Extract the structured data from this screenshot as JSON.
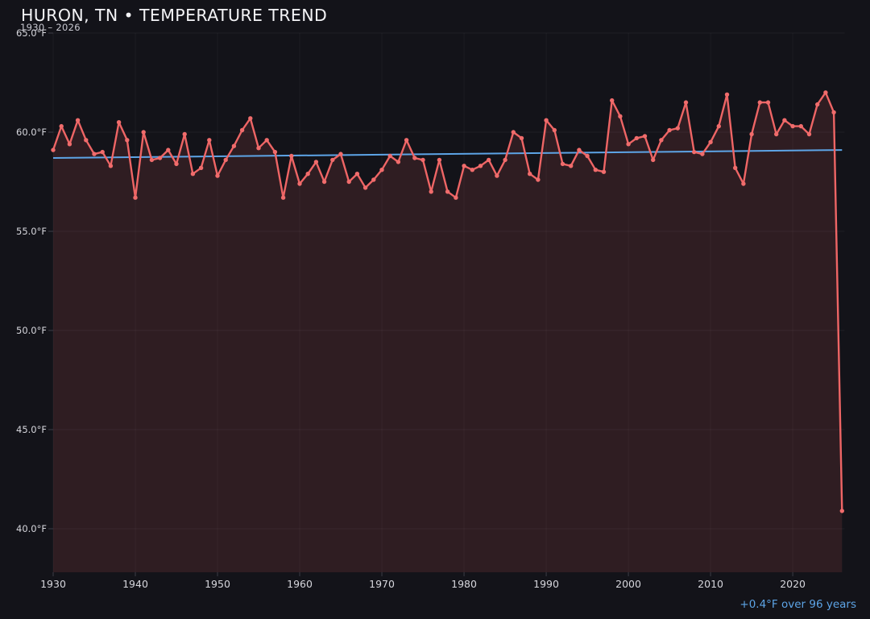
{
  "page": {
    "background": "#131319"
  },
  "header": {
    "title": "HURON, TN • TEMPERATURE TREND",
    "subtitle": "1930 – 2026"
  },
  "colors": {
    "background": "#131319",
    "line": "#ee6565",
    "marker": "#f06c6c",
    "area_fill": "rgba(238,101,101,0.13)",
    "trendline": "#5da4e6",
    "annotation_text": "#5da4e6",
    "tick_label": "#d6d6dc",
    "title_text": "#f3f3f6",
    "subtitle_text": "#c9c9d1",
    "gridline": "rgba(255,255,255,0.055)",
    "gridline_vertical": "rgba(255,255,255,0.04)",
    "tick_mark": "#3c3c46"
  },
  "chart_data": {
    "type": "line",
    "title": "HURON, TN • TEMPERATURE TREND",
    "subtitle": "1930 – 2026",
    "station": "HURON, TN",
    "annotation": "+0.4°F over 96 years",
    "xlabel": "",
    "ylabel": "",
    "y_unit": "°F",
    "x_unit": "year",
    "xlim": [
      1930,
      2026
    ],
    "ylim": [
      37.6,
      65.0
    ],
    "grid": true,
    "legend_position": "none",
    "x_ticks": [
      1930,
      1940,
      1950,
      1960,
      1970,
      1980,
      1990,
      2000,
      2010,
      2020
    ],
    "y_ticks": [
      {
        "value": 65,
        "label": "65.0°F"
      },
      {
        "value": 60,
        "label": "60.0°F"
      },
      {
        "value": 55,
        "label": "55.0°F"
      },
      {
        "value": 50,
        "label": "50.0°F"
      },
      {
        "value": 45,
        "label": "45.0°F"
      },
      {
        "value": 40,
        "label": "40.0°F"
      }
    ],
    "x": [
      1930,
      1931,
      1932,
      1933,
      1934,
      1935,
      1936,
      1937,
      1938,
      1939,
      1940,
      1941,
      1942,
      1943,
      1944,
      1945,
      1946,
      1947,
      1948,
      1949,
      1950,
      1951,
      1952,
      1953,
      1954,
      1955,
      1956,
      1957,
      1958,
      1959,
      1960,
      1961,
      1962,
      1963,
      1964,
      1965,
      1966,
      1967,
      1968,
      1969,
      1970,
      1971,
      1972,
      1973,
      1974,
      1975,
      1976,
      1977,
      1978,
      1979,
      1980,
      1981,
      1982,
      1983,
      1984,
      1985,
      1986,
      1987,
      1988,
      1989,
      1990,
      1991,
      1992,
      1993,
      1994,
      1995,
      1996,
      1997,
      1998,
      1999,
      2000,
      2001,
      2002,
      2003,
      2004,
      2005,
      2006,
      2007,
      2008,
      2009,
      2010,
      2011,
      2012,
      2013,
      2014,
      2015,
      2016,
      2017,
      2018,
      2019,
      2020,
      2021,
      2022,
      2023,
      2024,
      2025,
      2026
    ],
    "series": [
      {
        "name": "annual-mean-temperature-f",
        "color": "#ee6565",
        "values": [
          59.1,
          60.3,
          59.4,
          60.6,
          59.6,
          58.9,
          59.0,
          58.3,
          60.5,
          59.6,
          56.7,
          60.0,
          58.6,
          58.7,
          59.1,
          58.4,
          59.9,
          57.9,
          58.2,
          59.6,
          57.8,
          58.6,
          59.3,
          60.1,
          60.7,
          59.2,
          59.6,
          59.0,
          56.7,
          58.8,
          57.4,
          57.9,
          58.5,
          57.5,
          58.6,
          58.9,
          57.5,
          57.9,
          57.2,
          57.6,
          58.1,
          58.8,
          58.5,
          59.6,
          58.7,
          58.6,
          57.0,
          58.6,
          57.0,
          56.7,
          58.3,
          58.1,
          58.3,
          58.6,
          57.8,
          58.6,
          60.0,
          59.7,
          57.9,
          57.6,
          60.6,
          60.1,
          58.4,
          58.3,
          59.1,
          58.8,
          58.1,
          58.0,
          61.6,
          60.8,
          59.4,
          59.7,
          59.8,
          58.6,
          59.6,
          60.1,
          60.2,
          61.5,
          59.0,
          58.9,
          59.5,
          60.3,
          61.9,
          58.2,
          57.4,
          59.9,
          61.5,
          61.5,
          59.9,
          60.6,
          60.3,
          60.3,
          59.9,
          61.4,
          62.0,
          61.0,
          40.9
        ]
      }
    ],
    "trendline": {
      "name": "linear-trend",
      "color": "#5da4e6",
      "start_year": 1930,
      "start_value": 58.7,
      "end_year": 2026,
      "end_value": 59.1
    }
  }
}
